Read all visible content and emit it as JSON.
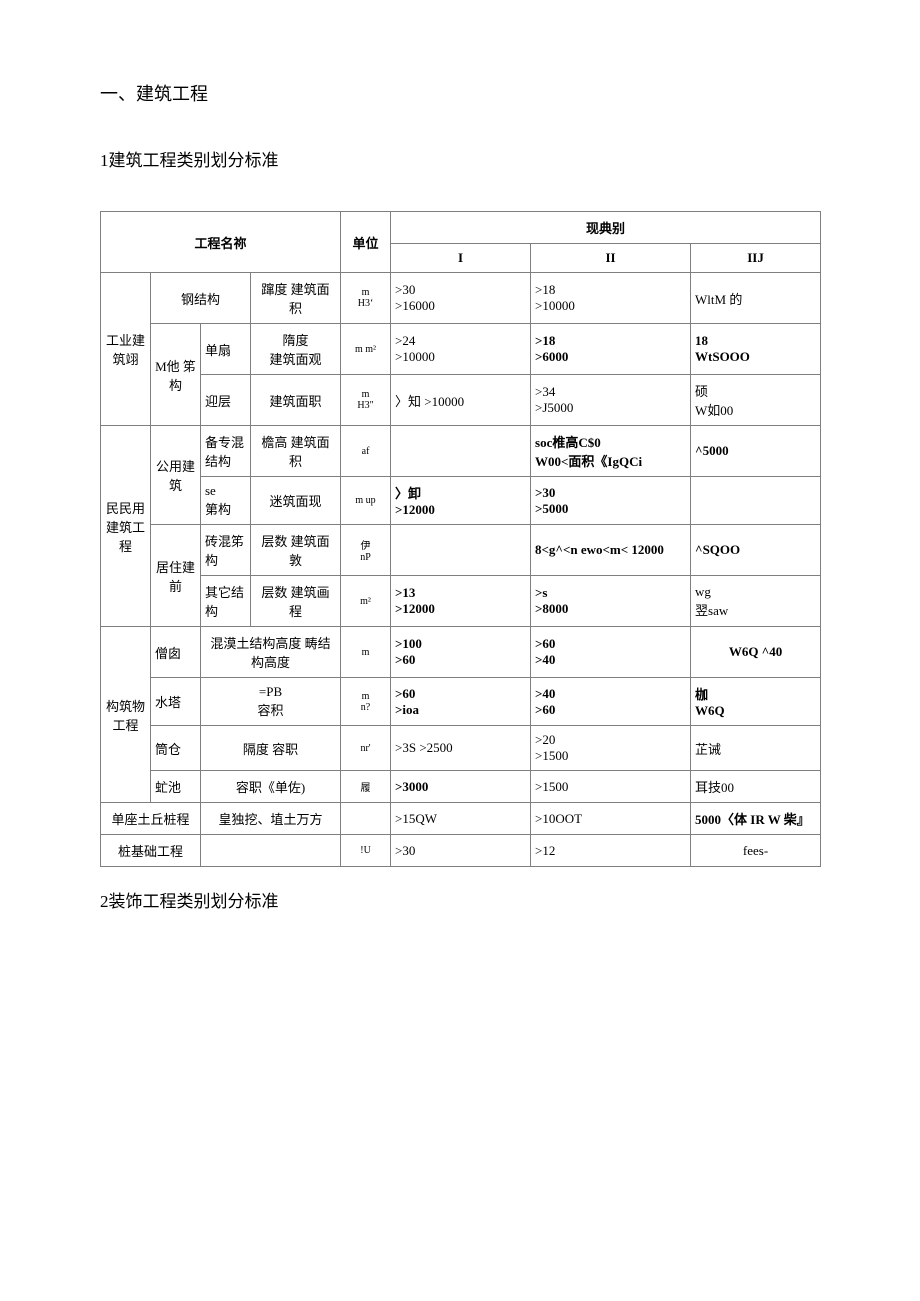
{
  "heading1": "一、建筑工程",
  "heading2": "1建筑工程类别划分标准",
  "heading3": "2装饰工程类别划分标准",
  "tbl": {
    "hdr": {
      "name": "工程名祢",
      "unit": "单位",
      "cat": "现典别",
      "c1": "I",
      "c2": "II",
      "c3": "IIJ"
    },
    "r1": {
      "a": "工业建筑翊",
      "b": "钢结构",
      "c": "蹿度 建筑面积",
      "u": "m\nH3ʻ",
      "v1": ">30\n>16000",
      "v2": ">18\n>10000",
      "v3": "WltM 的"
    },
    "r2": {
      "b": "M他 笫构",
      "bb": "单扇",
      "c": "隋度\n建筑面观",
      "u": "m m²",
      "v1": ">24\n>10000",
      "v2": ">18\n>6000",
      "v3": "18\nWtSOOO"
    },
    "r3": {
      "bb": "迎层",
      "c": "建筑面职",
      "u": "m\nH3\"",
      "v1": "〉知 >10000",
      "v2": ">34\n>J5000",
      "v3": "硕\nW如00"
    },
    "r4": {
      "a": "民民用建筑工程",
      "b": "公用建筑",
      "bb": "备专混结构",
      "c": "檐高 建筑面积",
      "u": "af",
      "v1": "",
      "v2": "soc椎高C$0\nW00<面积《IgQCi",
      "v3": "^5000"
    },
    "r5": {
      "bb": "se\n第构",
      "c": "迷筑面现",
      "u": "m up",
      "v1": "〉卸\n>12000",
      "v2": ">30\n>5000",
      "v3": ""
    },
    "r6": {
      "b": "居住建前",
      "bb": "砖混笫构",
      "c": "层数 建筑面敦",
      "u": "伊\nnP",
      "v1": "",
      "v2": "8<g^<n ewo<m< 12000",
      "v3": "^SQOO"
    },
    "r7": {
      "bb": "其它结构",
      "c": "层数 建筑画程",
      "u": "m²",
      "v1": ">13\n>12000",
      "v2": ">s\n>8000",
      "v3": "wg\n翌saw"
    },
    "r8": {
      "a": "构筑物工程",
      "b": "僧囱",
      "c": "混漠土结构高度 畴结构高度",
      "u": "m",
      "v1": ">100\n>60",
      "v2": ">60\n>40",
      "v3": "W6Q ^40"
    },
    "r9": {
      "b": "水塔",
      "c": "=PB\n容积",
      "u": "m\nn?",
      "v1": ">60\n>ioa",
      "v2": ">40\n>60",
      "v3": "枷\nW6Q"
    },
    "r10": {
      "b": "筒仓",
      "c": "隔度 容职",
      "u": "nr'",
      "v1": ">3S >2500",
      "v2": ">20\n>1500",
      "v3": "芷诫"
    },
    "r11": {
      "b": "虻池",
      "c": "容职《单佐)",
      "u": "履",
      "v1": ">3000",
      "v2": ">1500",
      "v3": "耳技00"
    },
    "r12": {
      "a": "单座土丘桩程",
      "c": "皇独挖、埴土万方",
      "u": "",
      "v1": ">15QW",
      "v2": ">10OOT",
      "v3": "5000〈体 IR W 柴』"
    },
    "r13": {
      "a": "桩基础工程",
      "c": "",
      "u": "!U",
      "v1": ">30",
      "v2": ">12",
      "v3": "fees-"
    }
  }
}
